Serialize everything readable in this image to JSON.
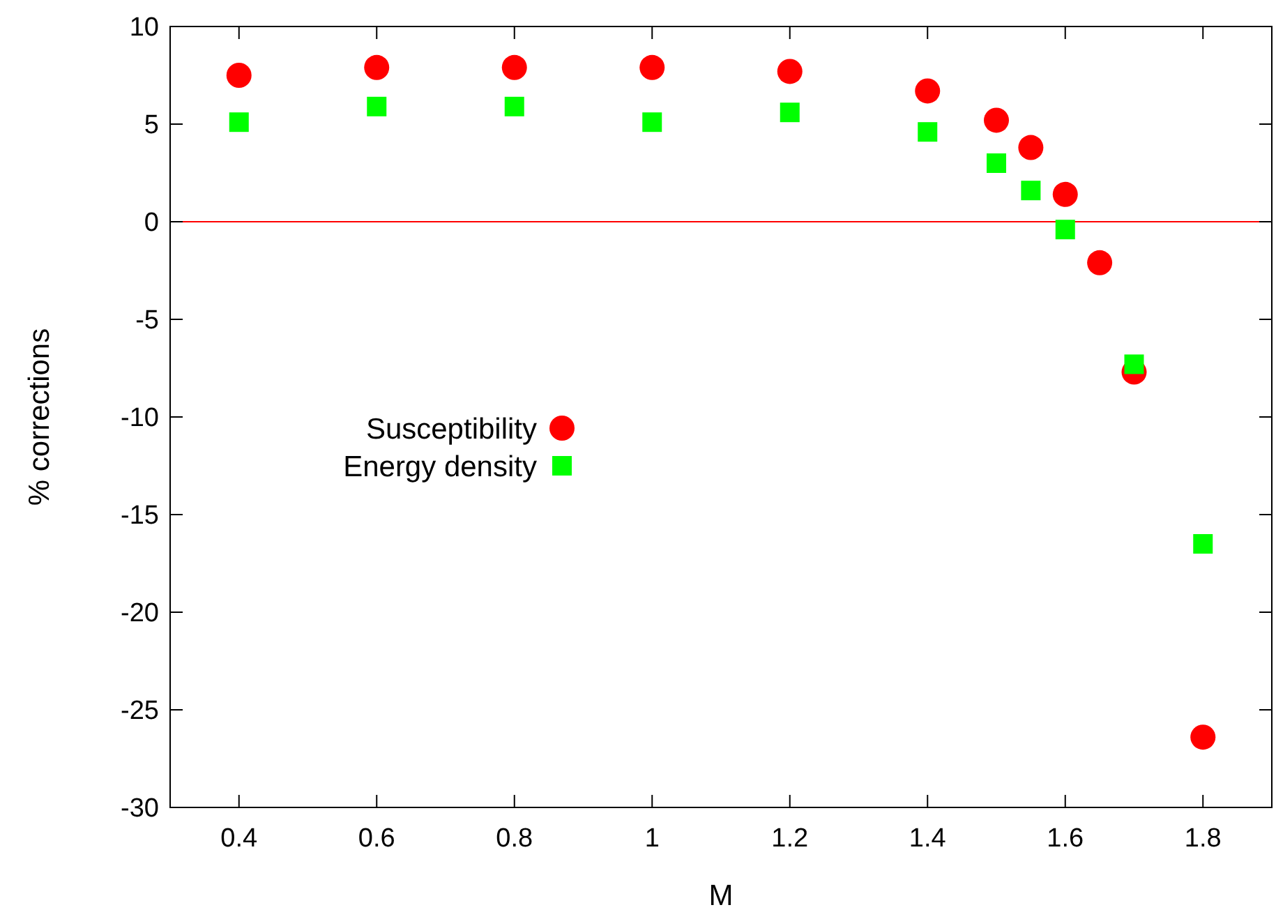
{
  "chart_data": {
    "type": "scatter",
    "xlabel": "M",
    "ylabel": "% corrections",
    "x": [
      0.4,
      0.6,
      0.8,
      1.0,
      1.2,
      1.4,
      1.5,
      1.55,
      1.6,
      1.65,
      1.7,
      1.8
    ],
    "series": [
      {
        "name": "Susceptibility",
        "color": "#ff0000",
        "marker": "circle",
        "values": [
          7.5,
          7.9,
          7.9,
          7.9,
          7.7,
          6.7,
          5.2,
          3.8,
          1.4,
          -2.1,
          -7.7,
          -26.4
        ]
      },
      {
        "name": "Energy density",
        "color": "#00ff00",
        "marker": "square",
        "x": [
          0.4,
          0.6,
          0.8,
          1.0,
          1.2,
          1.4,
          1.5,
          1.55,
          1.6,
          1.7,
          1.8
        ],
        "values": [
          5.1,
          5.9,
          5.9,
          5.1,
          5.6,
          4.6,
          3.0,
          1.6,
          -0.4,
          -7.3,
          -16.5
        ]
      }
    ],
    "xlim": [
      0.3,
      1.9
    ],
    "xticks": [
      0.4,
      0.6,
      0.8,
      1,
      1.2,
      1.4,
      1.6,
      1.8
    ],
    "ylim": [
      -30,
      10
    ],
    "yticks": [
      -30,
      -25,
      -20,
      -15,
      -10,
      -5,
      0,
      5,
      10
    ],
    "ref_lines": [
      {
        "axis": "y",
        "value": 0,
        "color": "#ff0000"
      }
    ],
    "grid": false,
    "legend": "left"
  }
}
